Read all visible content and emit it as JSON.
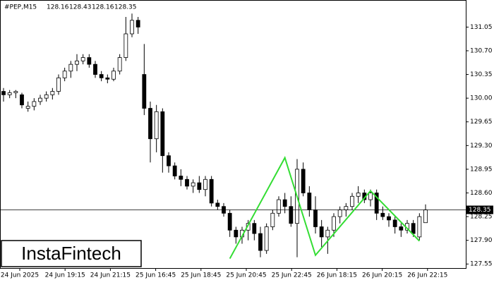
{
  "chart_data": {
    "type": "candlestick",
    "symbol": "#PEP,M15",
    "ylim": [
      127.49,
      131.45
    ],
    "yticks": [
      131.05,
      {
        "value": 130.7,
        "label": "130.70"
      },
      130.35,
      {
        "value": 130,
        "label": "130.00"
      },
      129.65,
      {
        "value": 129.3,
        "label": "129.30"
      },
      128.95,
      {
        "value": 128.6,
        "label": "128.60"
      },
      128.25,
      {
        "value": 127.9,
        "label": "127.90"
      },
      127.55
    ],
    "xlabels": [
      "24 Jun 2025",
      "24 Jun 19:15",
      "24 Jun 21:15",
      "25 Jun 16:45",
      "25 Jun 18:45",
      "25 Jun 20:45",
      "25 Jun 22:45",
      "26 Jun 18:15",
      "26 Jun 20:15",
      "26 Jun 22:15"
    ],
    "current_price": 128.35,
    "pattern_color": "#33dd33",
    "pattern": [
      {
        "index": 37,
        "price": 127.63
      },
      {
        "index": 46,
        "price": 129.12
      },
      {
        "index": 51,
        "price": 127.68
      },
      {
        "index": 60,
        "price": 128.63
      },
      {
        "index": 68,
        "price": 127.89
      }
    ],
    "ohlc": [
      {
        "open": 130.1,
        "high": 130.15,
        "low": 129.95,
        "close": 130.05
      },
      {
        "open": 130.05,
        "high": 130.12,
        "low": 130,
        "close": 130.08
      },
      {
        "open": 130.08,
        "high": 130.12,
        "low": 130,
        "close": 130.1
      },
      {
        "open": 130.05,
        "high": 130.08,
        "low": 129.85,
        "close": 129.9
      },
      {
        "open": 129.85,
        "high": 129.95,
        "low": 129.8,
        "close": 129.88
      },
      {
        "open": 129.88,
        "high": 130,
        "low": 129.82,
        "close": 129.95
      },
      {
        "open": 129.95,
        "high": 130.05,
        "low": 129.9,
        "close": 130
      },
      {
        "open": 130,
        "high": 130.1,
        "low": 129.95,
        "close": 130.05
      },
      {
        "open": 130.05,
        "high": 130.15,
        "low": 129.98,
        "close": 130.1
      },
      {
        "open": 130.1,
        "high": 130.35,
        "low": 130.05,
        "close": 130.3
      },
      {
        "open": 130.3,
        "high": 130.45,
        "low": 130.25,
        "close": 130.4
      },
      {
        "open": 130.4,
        "high": 130.55,
        "low": 130.3,
        "close": 130.5
      },
      {
        "open": 130.5,
        "high": 130.65,
        "low": 130.4,
        "close": 130.55
      },
      {
        "open": 130.55,
        "high": 130.65,
        "low": 130.5,
        "close": 130.6
      },
      {
        "open": 130.6,
        "high": 130.65,
        "low": 130.45,
        "close": 130.5
      },
      {
        "open": 130.5,
        "high": 130.55,
        "low": 130.3,
        "close": 130.35
      },
      {
        "open": 130.35,
        "high": 130.4,
        "low": 130.25,
        "close": 130.3
      },
      {
        "open": 130.3,
        "high": 130.35,
        "low": 130.22,
        "close": 130.28
      },
      {
        "open": 130.28,
        "high": 130.45,
        "low": 130.25,
        "close": 130.4
      },
      {
        "open": 130.4,
        "high": 130.65,
        "low": 130.35,
        "close": 130.6
      },
      {
        "open": 130.6,
        "high": 131.2,
        "low": 130.55,
        "close": 130.95
      },
      {
        "open": 130.95,
        "high": 131.25,
        "low": 130.9,
        "close": 131.15
      },
      {
        "open": 131.15,
        "high": 131.2,
        "low": 130.95,
        "close": 131.05
      },
      {
        "open": 130.35,
        "high": 130.8,
        "low": 129.75,
        "close": 129.85
      },
      {
        "open": 129.85,
        "high": 129.95,
        "low": 129.05,
        "close": 129.4
      },
      {
        "open": 129.4,
        "high": 129.9,
        "low": 129.2,
        "close": 129.8
      },
      {
        "open": 129.8,
        "high": 129.85,
        "low": 128.9,
        "close": 129.15
      },
      {
        "open": 129.15,
        "high": 129.2,
        "low": 128.9,
        "close": 129
      },
      {
        "open": 129,
        "high": 129.05,
        "low": 128.8,
        "close": 128.85
      },
      {
        "open": 128.85,
        "high": 128.95,
        "low": 128.7,
        "close": 128.8
      },
      {
        "open": 128.8,
        "high": 128.85,
        "low": 128.65,
        "close": 128.7
      },
      {
        "open": 128.7,
        "high": 128.8,
        "low": 128.6,
        "close": 128.75
      },
      {
        "open": 128.75,
        "high": 128.85,
        "low": 128.6,
        "close": 128.65
      },
      {
        "open": 128.65,
        "high": 128.85,
        "low": 128.55,
        "close": 128.8
      },
      {
        "open": 128.8,
        "high": 128.85,
        "low": 128.4,
        "close": 128.45
      },
      {
        "open": 128.45,
        "high": 128.5,
        "low": 128.35,
        "close": 128.4
      },
      {
        "open": 128.4,
        "high": 128.45,
        "low": 128.25,
        "close": 128.3
      },
      {
        "open": 128.3,
        "high": 128.35,
        "low": 127.95,
        "close": 128.05
      },
      {
        "open": 128.05,
        "high": 128.1,
        "low": 127.85,
        "close": 127.95
      },
      {
        "open": 127.95,
        "high": 128.1,
        "low": 127.85,
        "close": 128.05
      },
      {
        "open": 128.05,
        "high": 128.2,
        "low": 127.9,
        "close": 128.15
      },
      {
        "open": 128.15,
        "high": 128.2,
        "low": 127.9,
        "close": 128
      },
      {
        "open": 128,
        "high": 128.1,
        "low": 127.65,
        "close": 127.75
      },
      {
        "open": 127.75,
        "high": 128.15,
        "low": 127.7,
        "close": 128.1
      },
      {
        "open": 128.1,
        "high": 128.35,
        "low": 128.05,
        "close": 128.3
      },
      {
        "open": 128.3,
        "high": 128.55,
        "low": 128.25,
        "close": 128.5
      },
      {
        "open": 128.5,
        "high": 128.6,
        "low": 128.3,
        "close": 128.4
      },
      {
        "open": 128.4,
        "high": 128.55,
        "low": 128.1,
        "close": 128.15
      },
      {
        "open": 128.15,
        "high": 129.1,
        "low": 127.65,
        "close": 128.95
      },
      {
        "open": 128.95,
        "high": 129.05,
        "low": 128.55,
        "close": 128.6
      },
      {
        "open": 128.6,
        "high": 128.7,
        "low": 128.25,
        "close": 128.35
      },
      {
        "open": 128.35,
        "high": 128.55,
        "low": 128,
        "close": 128.1
      },
      {
        "open": 128.1,
        "high": 128.2,
        "low": 127.8,
        "close": 127.95
      },
      {
        "open": 127.95,
        "high": 128.1,
        "low": 127.7,
        "close": 128.05
      },
      {
        "open": 128.05,
        "high": 128.3,
        "low": 127.95,
        "close": 128.25
      },
      {
        "open": 128.25,
        "high": 128.4,
        "low": 128.15,
        "close": 128.35
      },
      {
        "open": 128.35,
        "high": 128.45,
        "low": 128.25,
        "close": 128.4
      },
      {
        "open": 128.4,
        "high": 128.6,
        "low": 128.35,
        "close": 128.55
      },
      {
        "open": 128.55,
        "high": 128.7,
        "low": 128.45,
        "close": 128.6
      },
      {
        "open": 128.6,
        "high": 128.65,
        "low": 128.45,
        "close": 128.5
      },
      {
        "open": 128.5,
        "high": 128.65,
        "low": 128.4,
        "close": 128.6
      },
      {
        "open": 128.6,
        "high": 128.65,
        "low": 128.2,
        "close": 128.3
      },
      {
        "open": 128.3,
        "high": 128.4,
        "low": 128.2,
        "close": 128.25
      },
      {
        "open": 128.25,
        "high": 128.3,
        "low": 128.1,
        "close": 128.2
      },
      {
        "open": 128.2,
        "high": 128.25,
        "low": 128,
        "close": 128.1
      },
      {
        "open": 128.1,
        "high": 128.15,
        "low": 127.95,
        "close": 128.05
      },
      {
        "open": 128.05,
        "high": 128.2,
        "low": 128,
        "close": 128.15
      },
      {
        "open": 128.15,
        "high": 128.2,
        "low": 127.95,
        "close": 128
      },
      {
        "open": 127.95,
        "high": 128.3,
        "low": 127.9,
        "close": 128.25
      },
      {
        "open": 128.16,
        "high": 128.43,
        "low": 128.16,
        "close": 128.35
      }
    ]
  },
  "logo": "InstaFintech"
}
